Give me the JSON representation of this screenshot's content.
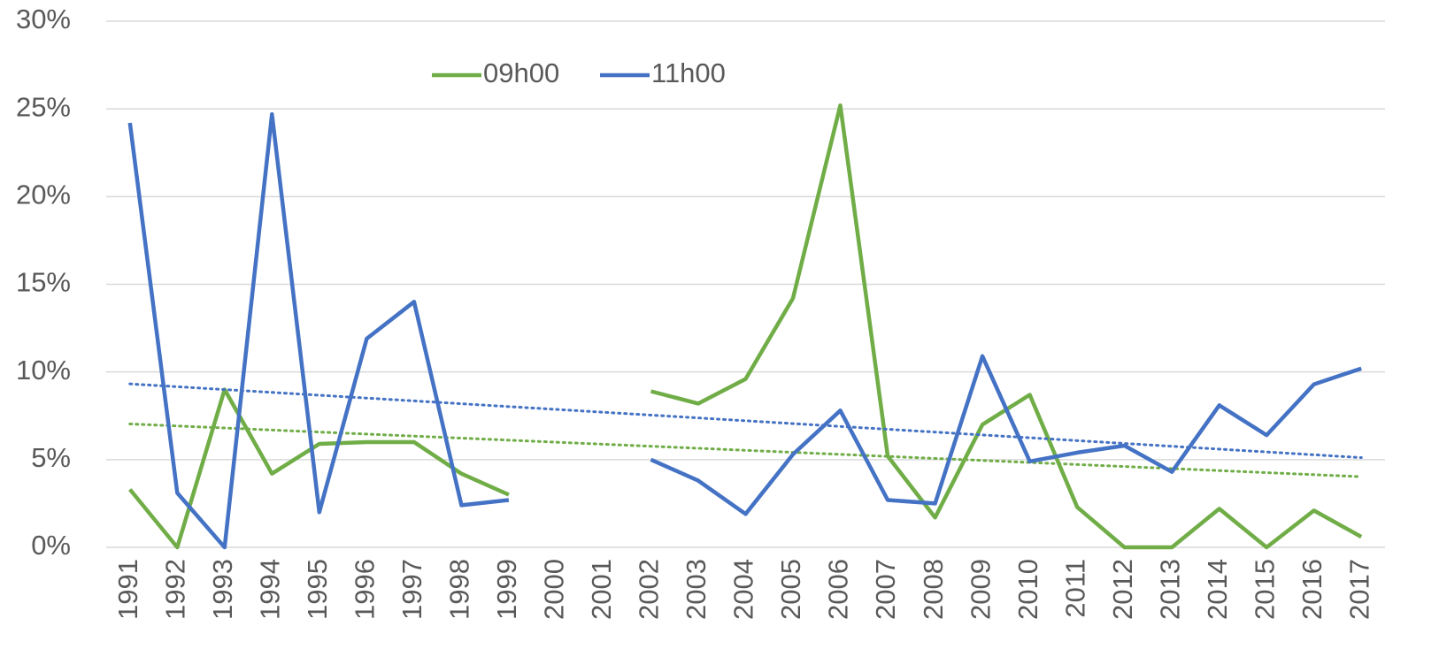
{
  "chart_data": {
    "type": "line",
    "categories": [
      "1991",
      "1992",
      "1993",
      "1994",
      "1995",
      "1996",
      "1997",
      "1998",
      "1999",
      "2000",
      "2001",
      "2002",
      "2003",
      "2004",
      "2005",
      "2006",
      "2007",
      "2008",
      "2009",
      "2010",
      "2011",
      "2012",
      "2013",
      "2014",
      "2015",
      "2016",
      "2017"
    ],
    "series": [
      {
        "name": "09h00",
        "color": "#70ad47",
        "values": [
          3.3,
          0,
          9.0,
          4.2,
          5.9,
          6.0,
          6.0,
          4.2,
          3.0,
          null,
          null,
          8.9,
          8.2,
          9.6,
          14.2,
          25.2,
          5.2,
          1.7,
          7.0,
          8.7,
          2.3,
          0,
          0,
          2.2,
          0,
          2.1,
          0.6
        ]
      },
      {
        "name": "11h00",
        "color": "#4472c4",
        "values": [
          24.2,
          3.1,
          0,
          24.7,
          2.0,
          11.9,
          14.0,
          2.4,
          2.7,
          null,
          null,
          5.0,
          3.8,
          1.9,
          5.3,
          7.8,
          2.7,
          2.5,
          10.9,
          4.9,
          5.4,
          5.8,
          4.3,
          8.1,
          6.4,
          9.3,
          10.2
        ]
      }
    ],
    "ylim": [
      0,
      30
    ],
    "yticks": [
      {
        "value": 0,
        "label": "0%"
      },
      {
        "value": 5,
        "label": "5%"
      },
      {
        "value": 10,
        "label": "10%"
      },
      {
        "value": 15,
        "label": "15%"
      },
      {
        "value": 20,
        "label": "20%"
      },
      {
        "value": 25,
        "label": "25%"
      },
      {
        "value": 30,
        "label": "30%"
      }
    ],
    "grid": true,
    "trendline": true,
    "legend": "top"
  }
}
